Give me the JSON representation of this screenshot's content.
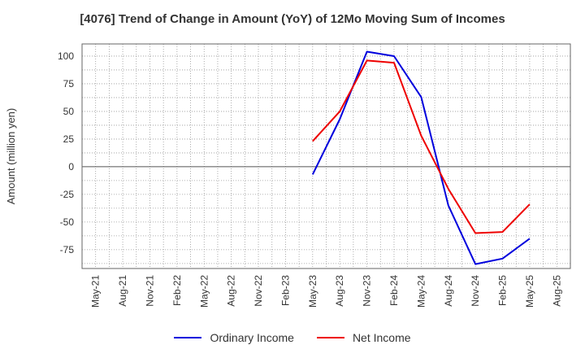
{
  "chart_data": {
    "type": "line",
    "title": "[4076]  Trend of Change in Amount (YoY) of 12Mo Moving Sum of Incomes",
    "ylabel": "Amount (million yen)",
    "xlabel": "",
    "categories": [
      "May-21",
      "Aug-21",
      "Nov-21",
      "Feb-22",
      "May-22",
      "Aug-22",
      "Nov-22",
      "Feb-23",
      "May-23",
      "Aug-23",
      "Nov-23",
      "Feb-24",
      "May-24",
      "Aug-24",
      "Nov-24",
      "Feb-25",
      "May-25",
      "Aug-25"
    ],
    "ylim": [
      -92,
      111
    ],
    "yticks": [
      100,
      75,
      50,
      25,
      0,
      -25,
      -50,
      -75
    ],
    "grid": true,
    "legend_position": "bottom",
    "series": [
      {
        "name": "Ordinary Income",
        "color": "#0000dd",
        "values": [
          null,
          null,
          null,
          null,
          null,
          null,
          null,
          null,
          -7,
          43,
          104,
          100,
          63,
          -35,
          -88,
          -83,
          -65,
          null
        ]
      },
      {
        "name": "Net Income",
        "color": "#ee0000",
        "values": [
          null,
          null,
          null,
          null,
          null,
          null,
          null,
          null,
          23,
          50,
          96,
          94,
          28,
          -20,
          -60,
          -59,
          -34,
          null
        ]
      }
    ]
  }
}
